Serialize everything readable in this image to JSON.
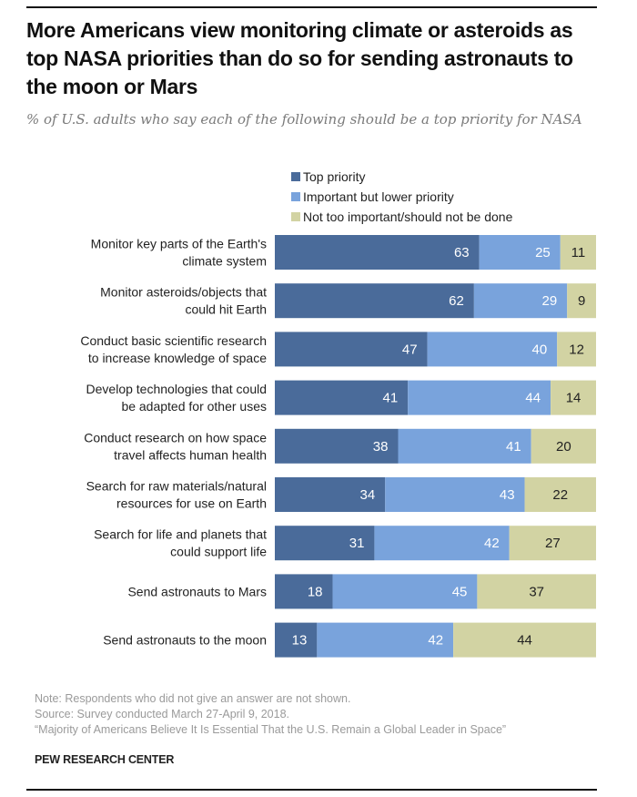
{
  "header": {
    "title": "More Americans view monitoring climate or asteroids as top NASA priorities than do so for sending astronauts to the moon or Mars",
    "subtitle": "% of U.S. adults who say each of the following should be a top priority for NASA"
  },
  "colors": {
    "top_priority": "#4a6b9a",
    "important_lower": "#79a3dc",
    "not_important": "#d2d3a3"
  },
  "chart_data": {
    "type": "bar",
    "orientation": "horizontal-stacked",
    "title": "More Americans view monitoring climate or asteroids as top NASA priorities than do so for sending astronauts to the moon or Mars",
    "subtitle": "% of U.S. adults who say each of the following should be a top priority for NASA",
    "xlabel": "",
    "ylabel": "",
    "xlim": [
      0,
      100
    ],
    "grid": false,
    "legend_position": "top",
    "categories": [
      "Monitor key parts of the Earth's climate system",
      "Monitor asteroids/objects that could hit Earth",
      "Conduct basic scientific research to increase knowledge of space",
      "Develop technologies that could be adapted for other uses",
      "Conduct research on how space travel affects human health",
      "Search for raw materials/natural resources for use on Earth",
      "Search for life and planets that could support life",
      "Send astronauts to Mars",
      "Send astronauts to the moon"
    ],
    "category_lines": [
      [
        "Monitor key parts of the Earth's",
        "climate system"
      ],
      [
        "Monitor asteroids/objects that",
        "could hit Earth"
      ],
      [
        "Conduct basic scientific research",
        "to increase knowledge of space"
      ],
      [
        "Develop technologies that could",
        "be adapted for other uses"
      ],
      [
        "Conduct research on how space",
        "travel affects human health"
      ],
      [
        "Search for raw materials/natural",
        "resources for use on Earth"
      ],
      [
        "Search for life and planets that",
        "could support life"
      ],
      [
        "Send astronauts to Mars"
      ],
      [
        "Send astronauts to the moon"
      ]
    ],
    "series": [
      {
        "name": "Top priority",
        "values": [
          63,
          62,
          47,
          41,
          38,
          34,
          31,
          18,
          13
        ]
      },
      {
        "name": "Important but lower priority",
        "values": [
          25,
          29,
          40,
          44,
          41,
          43,
          42,
          45,
          42
        ]
      },
      {
        "name": "Not too important/should not be done",
        "values": [
          11,
          9,
          12,
          14,
          20,
          22,
          27,
          37,
          44
        ]
      }
    ]
  },
  "footer": {
    "note": "Note: Respondents who did not give an answer are not shown.",
    "source": "Source: Survey conducted March 27-April 9, 2018.",
    "report": "“Majority of Americans Believe It Is Essential That the U.S. Remain a Global Leader in Space”",
    "brand": "PEW RESEARCH CENTER"
  }
}
